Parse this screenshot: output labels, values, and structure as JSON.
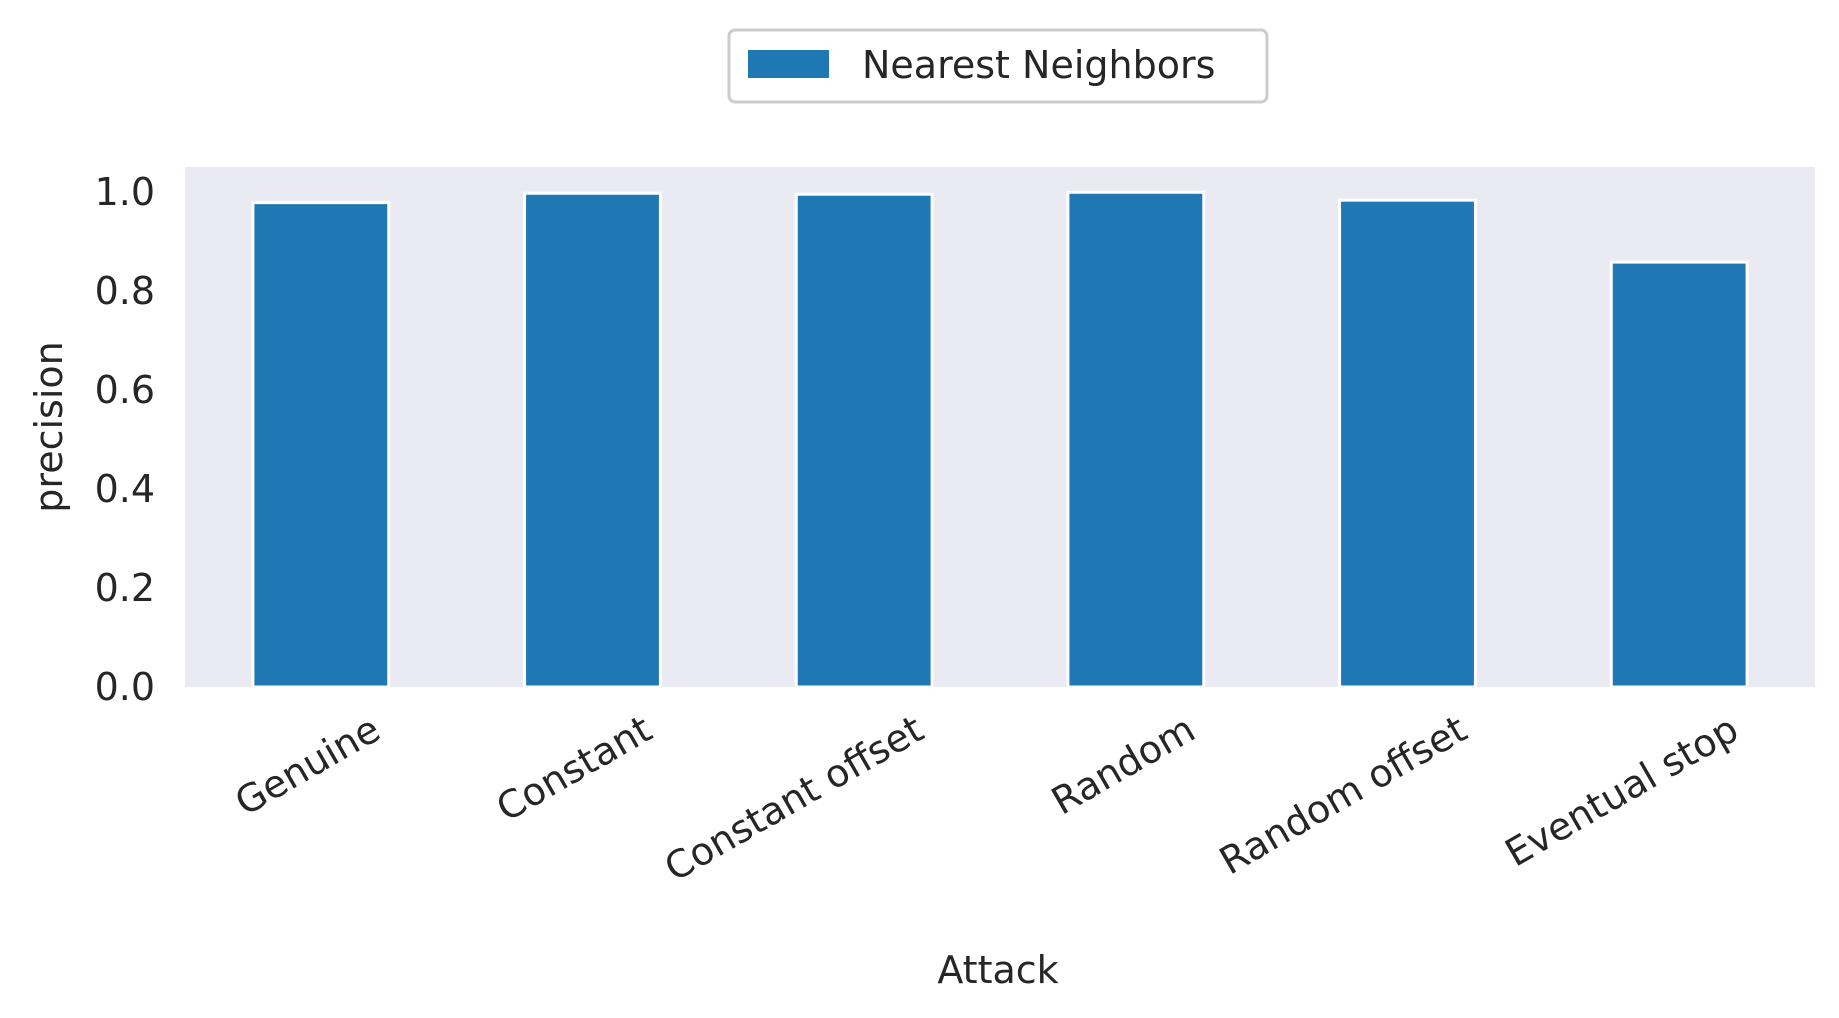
{
  "chart_data": {
    "type": "bar",
    "categories": [
      "Genuine",
      "Constant",
      "Constant offset",
      "Random",
      "Random offset",
      "Eventual stop"
    ],
    "series": [
      {
        "name": "Nearest Neighbors",
        "values": [
          0.978,
          0.997,
          0.995,
          0.999,
          0.983,
          0.858
        ]
      }
    ],
    "title": "",
    "xlabel": "Attack",
    "ylabel": "precision",
    "ylim": [
      0,
      1.05
    ],
    "yticks": [
      "0.0",
      "0.2",
      "0.4",
      "0.6",
      "0.8",
      "1.0"
    ],
    "grid": false,
    "legend_position": "top-center",
    "colors": {
      "bar": "#1f77b4",
      "plot_background": "#eaeaf2",
      "legend_border": "#cccccc"
    }
  }
}
